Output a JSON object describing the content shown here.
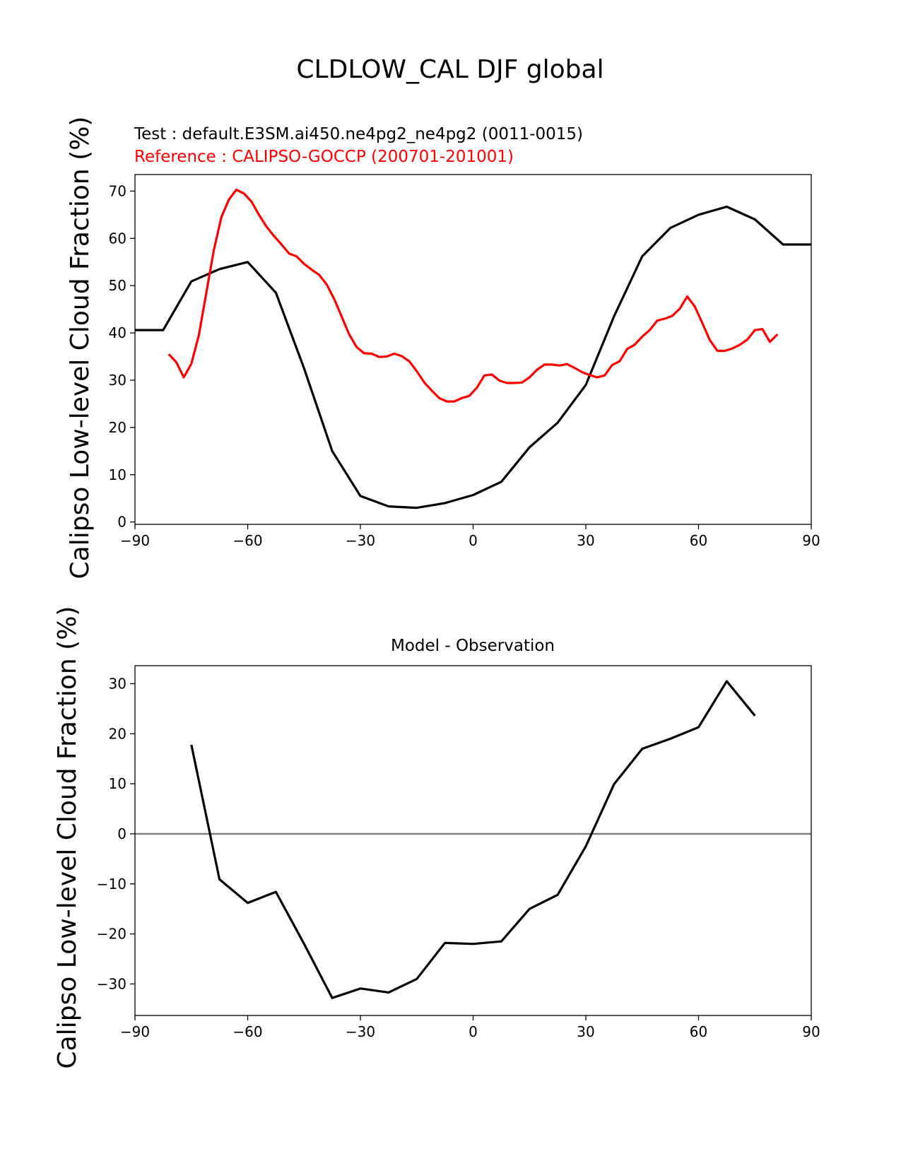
{
  "suptitle": "CLDLOW_CAL DJF global",
  "chart_data": [
    {
      "type": "line",
      "id": "top",
      "test_label": "Test : default.E3SM.ai450.ne4pg2_ne4pg2 (0011-0015)",
      "reference_label": "Reference : CALIPSO-GOCCP (200701-201001)",
      "ylabel": "Calipso Low-level Cloud Fraction (%)",
      "xlim": [
        -90,
        90
      ],
      "ylim": [
        -0.5,
        73.5
      ],
      "xticks": [
        -90,
        -60,
        -30,
        0,
        30,
        60,
        90
      ],
      "xtick_labels": [
        "−90",
        "−60",
        "−30",
        "0",
        "30",
        "60",
        "90"
      ],
      "yticks": [
        0,
        10,
        20,
        30,
        40,
        50,
        60,
        70
      ],
      "ytick_labels": [
        "0",
        "10",
        "20",
        "30",
        "40",
        "50",
        "60",
        "70"
      ],
      "series": [
        {
          "name": "test",
          "color": "#000000",
          "x": [
            -90,
            -82.5,
            -75,
            -67.5,
            -60,
            -52.5,
            -45,
            -37.5,
            -30,
            -22.5,
            -15,
            -7.5,
            0,
            7.5,
            15,
            22.5,
            30,
            37.5,
            45,
            52.5,
            60,
            67.5,
            75,
            82.5,
            90
          ],
          "y": [
            40.6,
            40.6,
            50.9,
            53.5,
            55.0,
            48.5,
            32.5,
            15.0,
            5.5,
            3.3,
            3.0,
            4.0,
            5.7,
            8.5,
            15.8,
            21.0,
            29.0,
            43.5,
            56.2,
            62.2,
            65.0,
            66.7,
            64.0,
            58.7,
            58.7
          ]
        },
        {
          "name": "reference",
          "color": "#ff0000",
          "x": [
            -81,
            -79,
            -77,
            -75,
            -73,
            -71,
            -69,
            -67,
            -65,
            -63,
            -61,
            -59,
            -57,
            -55,
            -53,
            -51,
            -49,
            -47,
            -45,
            -43,
            -41,
            -39,
            -37,
            -35,
            -33,
            -31,
            -29,
            -27,
            -25,
            -23,
            -21,
            -19,
            -17,
            -15,
            -13,
            -11,
            -9,
            -7,
            -5,
            -3,
            -1,
            1,
            3,
            5,
            7,
            9,
            11,
            13,
            15,
            17,
            19,
            21,
            23,
            25,
            27,
            29,
            31,
            33,
            35,
            37,
            39,
            41,
            43,
            45,
            47,
            49,
            51,
            53,
            55,
            57,
            59,
            61,
            63,
            65,
            67,
            69,
            71,
            73,
            75,
            77,
            79,
            81
          ],
          "y": [
            35.5,
            33.8,
            30.6,
            33.5,
            39.5,
            48.5,
            57.5,
            64.5,
            68.2,
            70.3,
            69.5,
            67.8,
            65.0,
            62.5,
            60.5,
            58.7,
            56.8,
            56.2,
            54.6,
            53.4,
            52.3,
            50.3,
            47.2,
            43.5,
            39.7,
            37.0,
            35.7,
            35.6,
            34.9,
            35.0,
            35.6,
            35.1,
            34.0,
            31.9,
            29.5,
            27.8,
            26.2,
            25.5,
            25.5,
            26.2,
            26.7,
            28.4,
            31.0,
            31.2,
            29.9,
            29.4,
            29.4,
            29.5,
            30.6,
            32.2,
            33.3,
            33.3,
            33.1,
            33.4,
            32.6,
            31.7,
            31.1,
            30.6,
            31.0,
            33.2,
            34.0,
            36.6,
            37.5,
            39.2,
            40.6,
            42.6,
            43.0,
            43.6,
            45.1,
            47.7,
            45.6,
            42.1,
            38.5,
            36.2,
            36.2,
            36.7,
            37.5,
            38.6,
            40.6,
            40.8,
            38.1,
            39.7
          ]
        }
      ]
    },
    {
      "type": "line",
      "id": "bottom",
      "title": "Model - Observation",
      "ylabel": "Calipso Low-level Cloud Fraction (%)",
      "xlim": [
        -90,
        90
      ],
      "ylim": [
        -36.3,
        33.6
      ],
      "xticks": [
        -90,
        -60,
        -30,
        0,
        30,
        60,
        90
      ],
      "xtick_labels": [
        "−90",
        "−60",
        "−30",
        "0",
        "30",
        "60",
        "90"
      ],
      "yticks": [
        -30,
        -20,
        -10,
        0,
        10,
        20,
        30
      ],
      "ytick_labels": [
        "−30",
        "−20",
        "−10",
        "0",
        "10",
        "20",
        "30"
      ],
      "zero_line_color": "#808080",
      "series": [
        {
          "name": "difference",
          "color": "#000000",
          "x": [
            -75,
            -67.5,
            -60,
            -52.5,
            -45,
            -37.5,
            -30,
            -22.5,
            -15,
            -7.5,
            0,
            7.5,
            15,
            22.5,
            30,
            37.5,
            45,
            52.5,
            60,
            67.5,
            75
          ],
          "y": [
            17.8,
            -9.1,
            -13.8,
            -11.6,
            -22.0,
            -32.8,
            -30.9,
            -31.7,
            -29.0,
            -21.8,
            -22.0,
            -21.5,
            -15.0,
            -12.2,
            -2.5,
            9.9,
            17.0,
            19.0,
            21.3,
            30.5,
            23.6
          ]
        }
      ]
    }
  ]
}
